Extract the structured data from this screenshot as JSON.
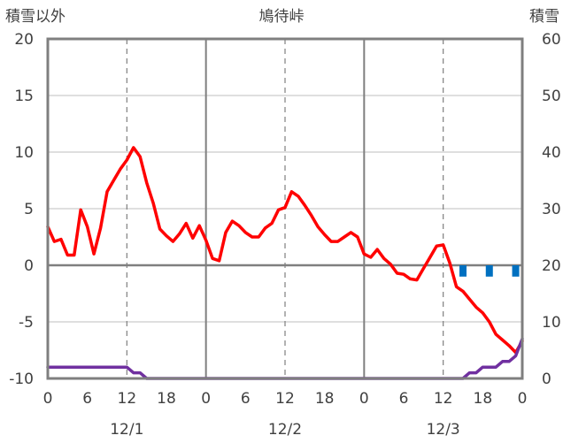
{
  "chart_data": {
    "type": "line",
    "title": "鳩待峠",
    "left_axis_label": "積雪以外",
    "right_axis_label": "積雪",
    "left_ylim": [
      -10,
      20
    ],
    "left_ticks": [
      20,
      15,
      10,
      5,
      0,
      -5,
      -10
    ],
    "right_ylim": [
      0,
      60
    ],
    "right_ticks": [
      60,
      50,
      40,
      30,
      20,
      10,
      0
    ],
    "x_hours_range": [
      0,
      72
    ],
    "x_tick_labels": [
      "0",
      "6",
      "12",
      "18",
      "0",
      "6",
      "12",
      "18",
      "0",
      "6",
      "12",
      "18",
      "0"
    ],
    "date_labels": [
      "12/1",
      "12/2",
      "12/3"
    ],
    "grid": true,
    "series": [
      {
        "color": "#ff0000",
        "axis": "left",
        "x": [
          0,
          1,
          2,
          3,
          4,
          5,
          6,
          7,
          8,
          9,
          10,
          11,
          12,
          13,
          14,
          15,
          16,
          17,
          18,
          19,
          20,
          21,
          22,
          23,
          24,
          25,
          26,
          27,
          28,
          29,
          30,
          31,
          32,
          33,
          34,
          35,
          36,
          37,
          38,
          39,
          40,
          41,
          42,
          43,
          44,
          45,
          46,
          47,
          48,
          49,
          50,
          51,
          52,
          53,
          54,
          55,
          56,
          57,
          58,
          59,
          60,
          61,
          62,
          63,
          64,
          65,
          66,
          67,
          68,
          69,
          70,
          71,
          72
        ],
        "values": [
          3.4,
          2.1,
          2.3,
          0.9,
          0.9,
          4.9,
          3.4,
          1.0,
          3.3,
          6.5,
          7.5,
          8.5,
          9.3,
          10.4,
          9.6,
          7.3,
          5.5,
          3.2,
          2.6,
          2.1,
          2.8,
          3.7,
          2.4,
          3.5,
          2.2,
          0.6,
          0.4,
          2.9,
          3.9,
          3.5,
          2.9,
          2.5,
          2.5,
          3.3,
          3.7,
          4.9,
          5.1,
          6.5,
          6.1,
          5.3,
          4.4,
          3.4,
          2.7,
          2.1,
          2.1,
          2.5,
          2.9,
          2.5,
          1.0,
          0.7,
          1.4,
          0.6,
          0.1,
          -0.7,
          -0.8,
          -1.2,
          -1.3,
          -0.3,
          0.7,
          1.7,
          1.8,
          0.2,
          -1.9,
          -2.3,
          -3.0,
          -3.7,
          -4.2,
          -5.0,
          -6.1,
          -6.6,
          -7.1,
          -7.7,
          -6.7
        ]
      },
      {
        "color": "#7030a0",
        "axis": "right",
        "x": [
          0,
          1,
          2,
          3,
          4,
          5,
          6,
          7,
          8,
          9,
          10,
          11,
          12,
          13,
          14,
          15,
          16,
          17,
          18,
          19,
          20,
          21,
          22,
          23,
          24,
          25,
          26,
          27,
          28,
          29,
          30,
          31,
          32,
          33,
          34,
          35,
          36,
          37,
          38,
          39,
          40,
          41,
          42,
          43,
          44,
          45,
          46,
          47,
          48,
          49,
          50,
          51,
          52,
          53,
          54,
          55,
          56,
          57,
          58,
          59,
          60,
          61,
          62,
          63,
          64,
          65,
          66,
          67,
          68,
          69,
          70,
          71,
          72
        ],
        "values": [
          2,
          2,
          2,
          2,
          2,
          2,
          2,
          2,
          2,
          2,
          2,
          2,
          2,
          1,
          1,
          0,
          0,
          0,
          0,
          0,
          0,
          0,
          0,
          0,
          0,
          0,
          0,
          0,
          0,
          0,
          0,
          0,
          0,
          0,
          0,
          0,
          0,
          0,
          0,
          0,
          0,
          0,
          0,
          0,
          0,
          0,
          0,
          0,
          0,
          0,
          0,
          0,
          0,
          0,
          0,
          0,
          0,
          0,
          0,
          0,
          0,
          0,
          0,
          0,
          1,
          1,
          2,
          2,
          2,
          3,
          3,
          4,
          7
        ]
      },
      {
        "color": "#0070c0",
        "axis": "left",
        "type": "bar",
        "x": [
          63,
          67,
          71
        ],
        "values": [
          -1.0,
          -1.0,
          -1.0
        ]
      }
    ]
  }
}
